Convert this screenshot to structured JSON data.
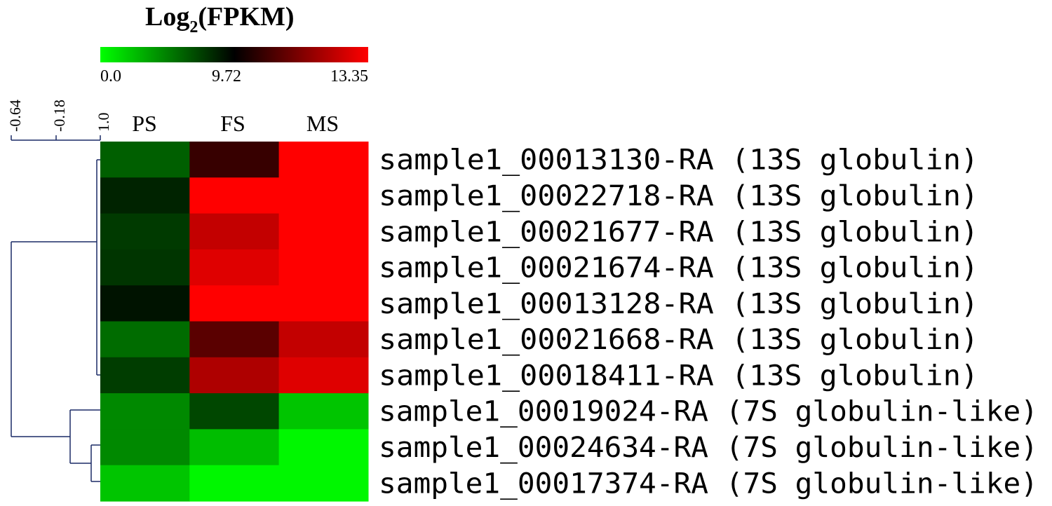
{
  "chart_data": {
    "type": "heatmap",
    "title": "Log",
    "title_subscript": "2",
    "title_suffix": "(FPKM)",
    "color_scale": {
      "min_label": "0.0",
      "mid_label": "9.72",
      "max_label": "13.35",
      "min": 0.0,
      "mid": 9.72,
      "max": 13.35,
      "colors": [
        "#00ff00",
        "#000000",
        "#ff0000"
      ]
    },
    "dendrogram_scale_labels": [
      "-0.64",
      "-0.18",
      "1.0"
    ],
    "columns": [
      "PS",
      "FS",
      "MS"
    ],
    "rows": [
      "sample1_00013130-RA (13S globulin)",
      "sample1_00022718-RA (13S globulin)",
      "sample1_00021677-RA (13S globulin)",
      "sample1_00021674-RA (13S globulin)",
      "sample1_00013128-RA (13S globulin)",
      "sample1_00021668-RA (13S globulin)",
      "sample1_00018411-RA (13S globulin)",
      "sample1_00019024-RA (7S globulin-like)",
      "sample1_00024634-RA (7S globulin-like)",
      "sample1_00017374-RA (7S globulin-like)"
    ],
    "values": [
      [
        6.1,
        10.5,
        13.35
      ],
      [
        8.4,
        13.35,
        13.35
      ],
      [
        7.5,
        12.5,
        13.35
      ],
      [
        7.7,
        12.9,
        13.35
      ],
      [
        9.0,
        13.35,
        13.35
      ],
      [
        5.6,
        11.0,
        12.5
      ],
      [
        7.4,
        12.2,
        12.9
      ],
      [
        4.5,
        7.0,
        2.2
      ],
      [
        4.5,
        2.5,
        0.3
      ],
      [
        2.2,
        0.3,
        0.3
      ]
    ]
  }
}
